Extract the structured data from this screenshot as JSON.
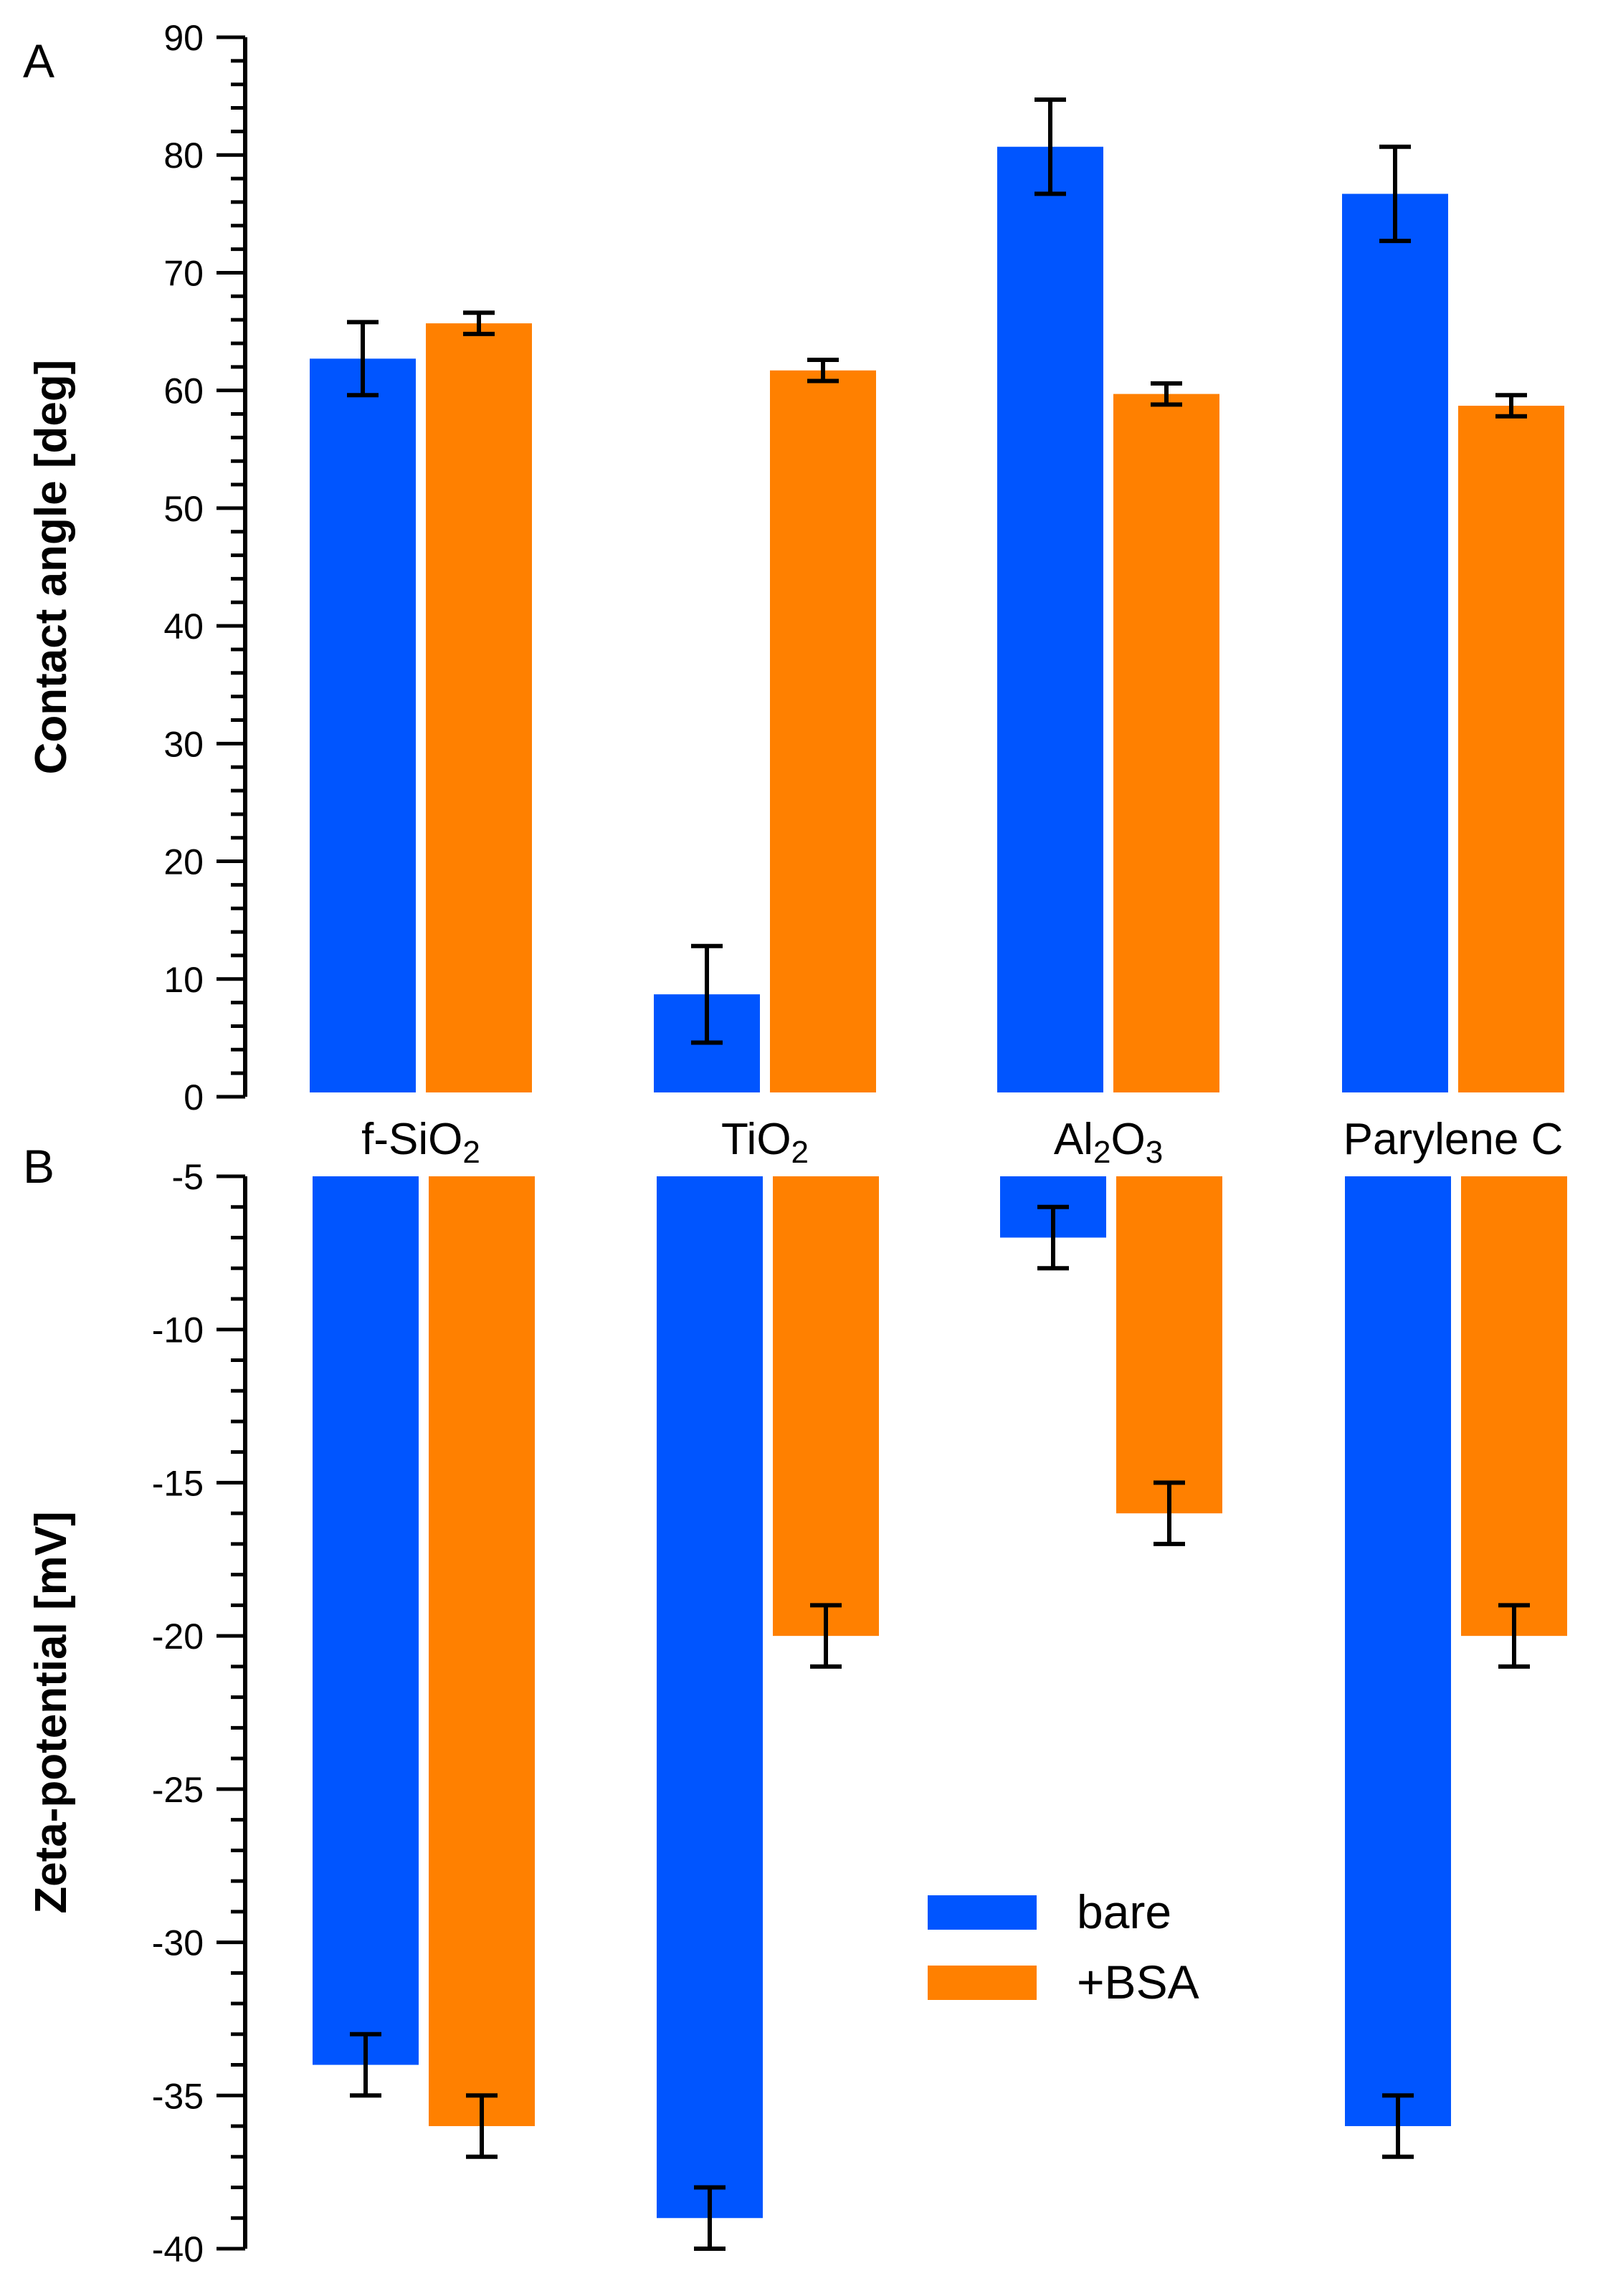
{
  "chart_data": [
    {
      "type": "bar",
      "panel": "A",
      "ylabel": "Contact angle [deg]",
      "xlabel": "",
      "ylim": [
        0,
        90
      ],
      "yticks": [
        "0",
        "10",
        "20",
        "30",
        "40",
        "50",
        "60",
        "70",
        "80",
        "90"
      ],
      "categories": [
        {
          "base": "f-SiO",
          "sub": "2",
          "tail": ""
        },
        {
          "base": "TiO",
          "sub": "2",
          "tail": ""
        },
        {
          "base": "Al",
          "sub": "2",
          "tail": "O",
          "sub2": "3"
        },
        {
          "base": "Parylene C",
          "sub": "",
          "tail": ""
        }
      ],
      "series": [
        {
          "name": "bare",
          "values": [
            62.7,
            8.7,
            80.7,
            76.7
          ],
          "errors": [
            3.1,
            4.1,
            4.0,
            4.0
          ]
        },
        {
          "name": "+BSA",
          "values": [
            65.7,
            61.7,
            59.7,
            58.7
          ],
          "errors": [
            0.9,
            0.9,
            0.9,
            0.9
          ]
        }
      ]
    },
    {
      "type": "bar",
      "panel": "B",
      "ylabel": "Zeta-potential [mV]",
      "xlabel": "",
      "ylim": [
        -40,
        -5
      ],
      "yticks": [
        "-40",
        "-35",
        "-30",
        "-25",
        "-20",
        "-15",
        "-10",
        "-5"
      ],
      "categories": [
        "f-SiO2",
        "TiO2",
        "Al2O3",
        "Parylene C"
      ],
      "series": [
        {
          "name": "bare",
          "values": [
            -34,
            -39,
            -7,
            -36
          ],
          "errors": [
            1,
            1,
            1,
            1
          ]
        },
        {
          "name": "+BSA",
          "values": [
            -36,
            -20,
            -16,
            -20
          ],
          "errors": [
            1,
            1,
            1,
            1
          ]
        }
      ]
    }
  ],
  "legend": [
    {
      "label": "bare",
      "color": "#0055ff"
    },
    {
      "label": "+BSA",
      "color": "#ff8000"
    }
  ],
  "colors": {
    "bare": "#0055ff",
    "bsa": "#ff8000"
  }
}
